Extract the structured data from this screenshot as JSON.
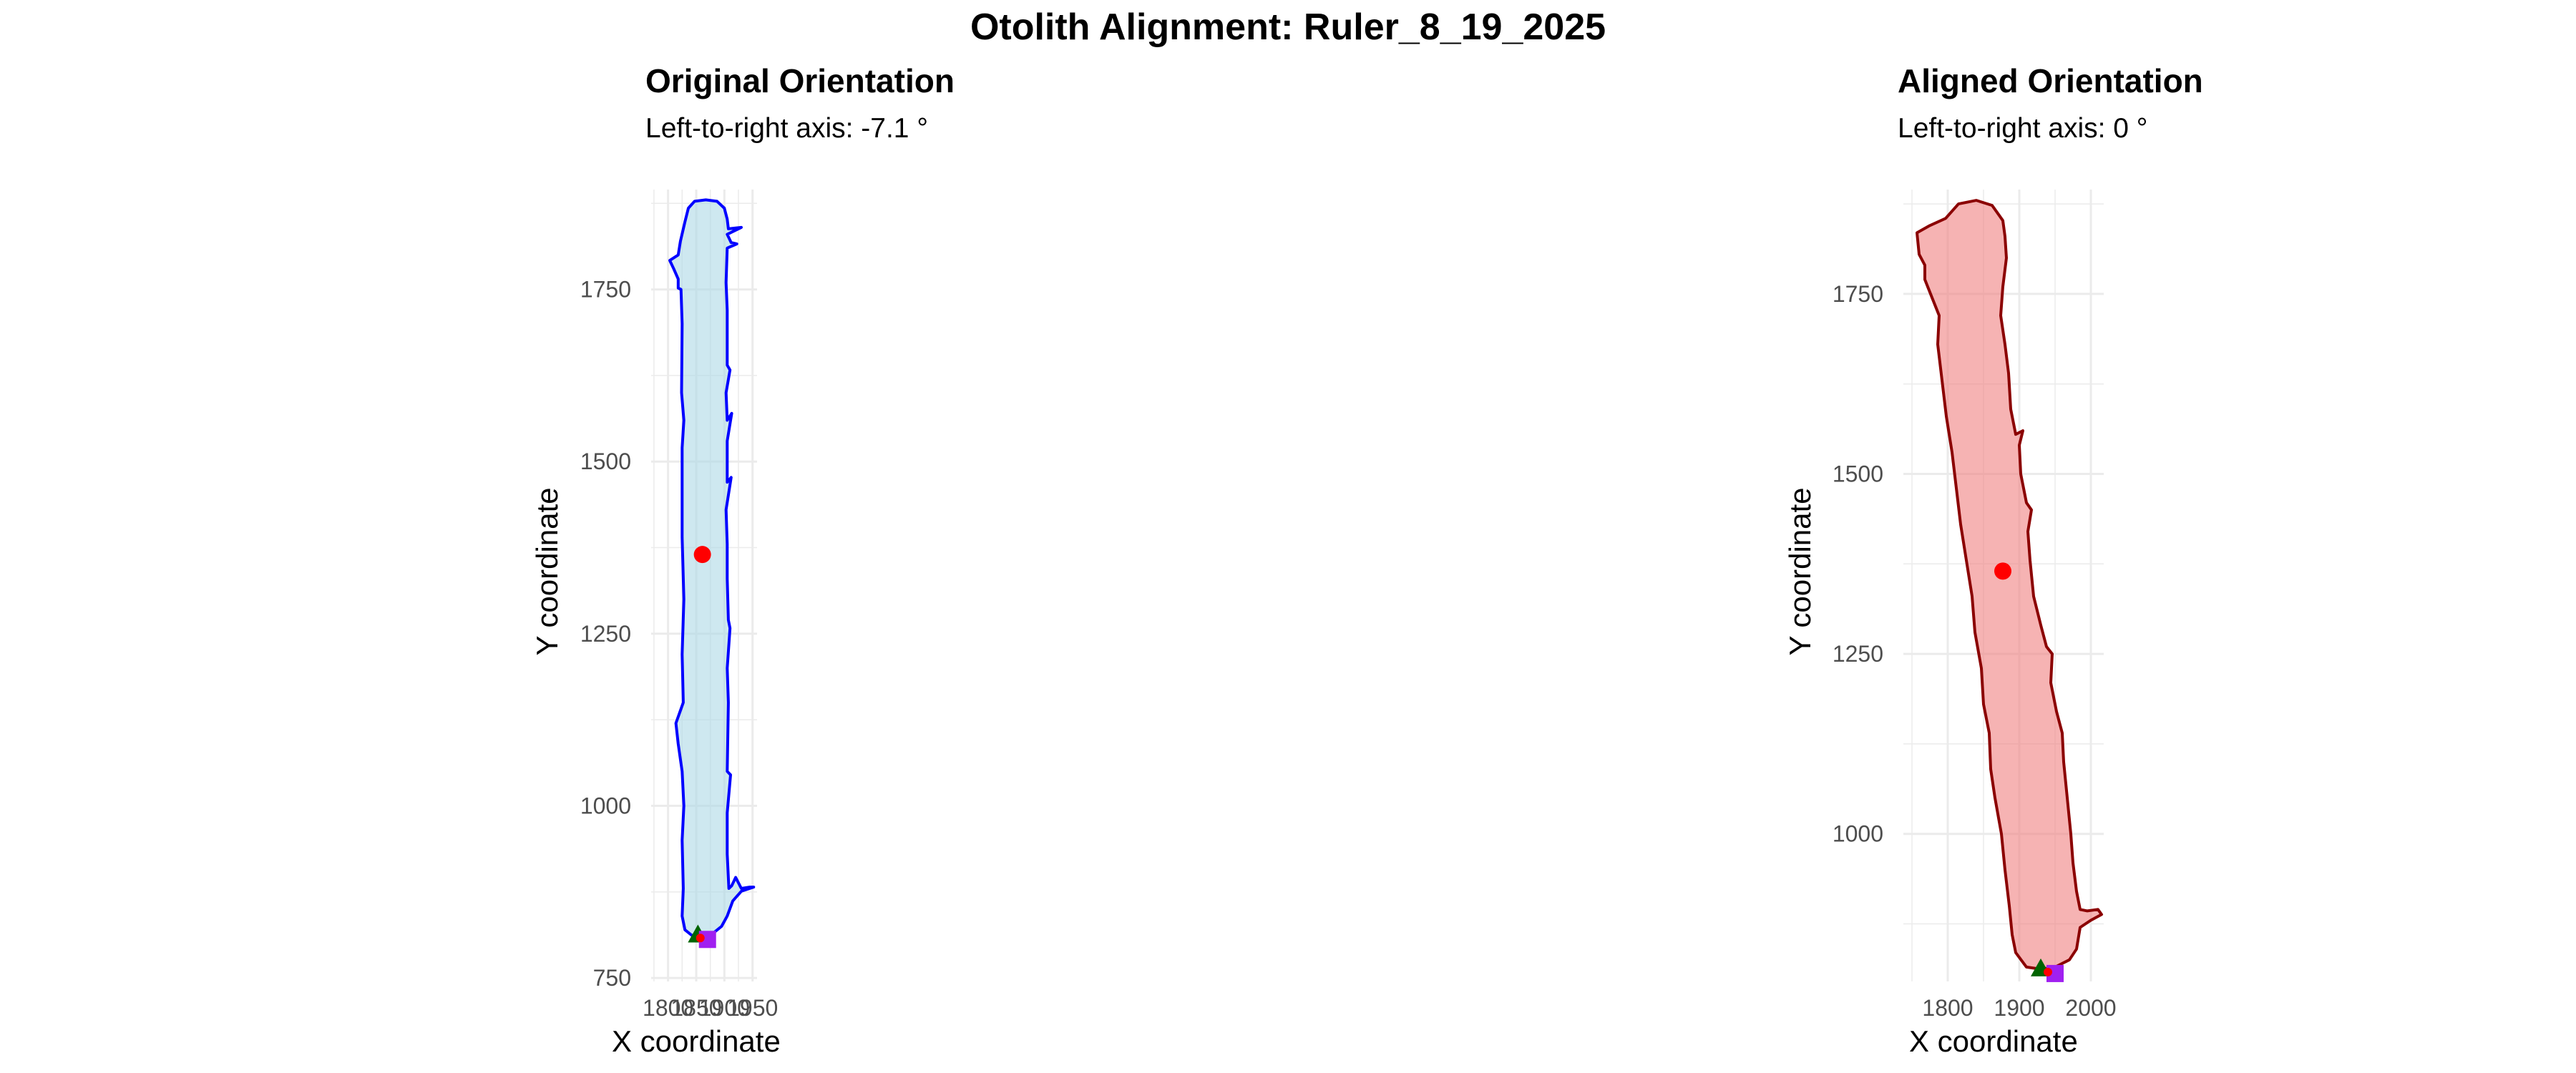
{
  "figure": {
    "title": "Otolith Alignment: Ruler_8_19_2025"
  },
  "chart_data": [
    {
      "type": "scatter",
      "title": "Original Orientation",
      "subtitle": "Left-to-right axis: -7.1 °",
      "xlabel": "X coordinate",
      "ylabel": "Y coordinate",
      "xlim": [
        1770,
        1958
      ],
      "ylim": [
        745,
        1895
      ],
      "x_ticks": [
        1800,
        1850,
        1900,
        1950
      ],
      "x_tick_labels": [
        "1800",
        "1850",
        "1900",
        "1950"
      ],
      "y_ticks": [
        750,
        1000,
        1250,
        1500,
        1750
      ],
      "y_tick_labels": [
        "750",
        "1000",
        "1250",
        "1500",
        "1750"
      ],
      "grid": true,
      "colors": {
        "outline": "#0000ff",
        "fill": "#add8e6",
        "centroid": "#ff0000",
        "triangle": "#006400",
        "square": "#a020f0"
      },
      "outline": [
        [
          1847,
          1878
        ],
        [
          1867,
          1880
        ],
        [
          1887,
          1878
        ],
        [
          1900,
          1868
        ],
        [
          1905,
          1852
        ],
        [
          1907,
          1838
        ],
        [
          1930,
          1840
        ],
        [
          1905,
          1830
        ],
        [
          1912,
          1818
        ],
        [
          1922,
          1816
        ],
        [
          1905,
          1810
        ],
        [
          1903,
          1760
        ],
        [
          1905,
          1720
        ],
        [
          1905,
          1640
        ],
        [
          1910,
          1633
        ],
        [
          1903,
          1600
        ],
        [
          1905,
          1560
        ],
        [
          1913,
          1570
        ],
        [
          1905,
          1530
        ],
        [
          1905,
          1470
        ],
        [
          1912,
          1477
        ],
        [
          1903,
          1430
        ],
        [
          1905,
          1380
        ],
        [
          1905,
          1330
        ],
        [
          1907,
          1270
        ],
        [
          1910,
          1258
        ],
        [
          1905,
          1200
        ],
        [
          1907,
          1150
        ],
        [
          1905,
          1050
        ],
        [
          1911,
          1045
        ],
        [
          1905,
          990
        ],
        [
          1905,
          930
        ],
        [
          1908,
          880
        ],
        [
          1913,
          884
        ],
        [
          1920,
          896
        ],
        [
          1930,
          880
        ],
        [
          1945,
          882
        ],
        [
          1952,
          882
        ],
        [
          1930,
          876
        ],
        [
          1915,
          862
        ],
        [
          1905,
          840
        ],
        [
          1895,
          825
        ],
        [
          1880,
          815
        ],
        [
          1860,
          812
        ],
        [
          1842,
          812
        ],
        [
          1830,
          820
        ],
        [
          1825,
          840
        ],
        [
          1827,
          880
        ],
        [
          1825,
          950
        ],
        [
          1828,
          1000
        ],
        [
          1825,
          1050
        ],
        [
          1818,
          1090
        ],
        [
          1814,
          1120
        ],
        [
          1827,
          1150
        ],
        [
          1825,
          1220
        ],
        [
          1828,
          1300
        ],
        [
          1825,
          1390
        ],
        [
          1825,
          1460
        ],
        [
          1825,
          1520
        ],
        [
          1828,
          1560
        ],
        [
          1824,
          1600
        ],
        [
          1825,
          1700
        ],
        [
          1823,
          1750
        ],
        [
          1818,
          1752
        ],
        [
          1818,
          1765
        ],
        [
          1810,
          1780
        ],
        [
          1803,
          1792
        ],
        [
          1818,
          1800
        ],
        [
          1822,
          1820
        ],
        [
          1830,
          1848
        ],
        [
          1836,
          1868
        ],
        [
          1847,
          1878
        ]
      ],
      "centroid": [
        1861,
        1365
      ],
      "triangle": [
        1853,
        812
      ],
      "square": [
        1870,
        806
      ]
    },
    {
      "type": "scatter",
      "title": "Aligned Orientation",
      "subtitle": "Left-to-right axis: 0 °",
      "xlabel": "X coordinate",
      "ylabel": "Y coordinate",
      "xlim": [
        1738,
        2018
      ],
      "ylim": [
        795,
        1895
      ],
      "x_ticks": [
        1800,
        1900,
        2000
      ],
      "x_tick_labels": [
        "1800",
        "1900",
        "2000"
      ],
      "y_ticks": [
        1000,
        1250,
        1500,
        1750
      ],
      "y_tick_labels": [
        "1000",
        "1250",
        "1500",
        "1750"
      ],
      "grid": true,
      "colors": {
        "outline": "#8b0000",
        "fill": "#f08080",
        "centroid": "#ff0000",
        "triangle": "#006400",
        "square": "#a020f0"
      },
      "outline": [
        [
          1797,
          1855
        ],
        [
          1815,
          1875
        ],
        [
          1840,
          1880
        ],
        [
          1862,
          1873
        ],
        [
          1877,
          1852
        ],
        [
          1880,
          1830
        ],
        [
          1882,
          1800
        ],
        [
          1877,
          1760
        ],
        [
          1874,
          1720
        ],
        [
          1880,
          1680
        ],
        [
          1885,
          1640
        ],
        [
          1888,
          1590
        ],
        [
          1895,
          1555
        ],
        [
          1905,
          1560
        ],
        [
          1900,
          1540
        ],
        [
          1902,
          1500
        ],
        [
          1910,
          1460
        ],
        [
          1917,
          1450
        ],
        [
          1912,
          1420
        ],
        [
          1915,
          1380
        ],
        [
          1920,
          1330
        ],
        [
          1930,
          1290
        ],
        [
          1938,
          1260
        ],
        [
          1946,
          1250
        ],
        [
          1944,
          1210
        ],
        [
          1952,
          1170
        ],
        [
          1960,
          1140
        ],
        [
          1962,
          1100
        ],
        [
          1967,
          1050
        ],
        [
          1972,
          1000
        ],
        [
          1975,
          960
        ],
        [
          1980,
          920
        ],
        [
          1985,
          895
        ],
        [
          1995,
          893
        ],
        [
          2010,
          895
        ],
        [
          2015,
          888
        ],
        [
          2000,
          880
        ],
        [
          1985,
          870
        ],
        [
          1980,
          840
        ],
        [
          1970,
          825
        ],
        [
          1950,
          815
        ],
        [
          1930,
          812
        ],
        [
          1910,
          815
        ],
        [
          1895,
          835
        ],
        [
          1890,
          860
        ],
        [
          1886,
          900
        ],
        [
          1880,
          950
        ],
        [
          1875,
          1000
        ],
        [
          1866,
          1050
        ],
        [
          1860,
          1090
        ],
        [
          1858,
          1140
        ],
        [
          1850,
          1180
        ],
        [
          1847,
          1230
        ],
        [
          1838,
          1280
        ],
        [
          1834,
          1330
        ],
        [
          1826,
          1380
        ],
        [
          1818,
          1430
        ],
        [
          1812,
          1480
        ],
        [
          1806,
          1530
        ],
        [
          1798,
          1580
        ],
        [
          1792,
          1630
        ],
        [
          1786,
          1680
        ],
        [
          1788,
          1720
        ],
        [
          1780,
          1740
        ],
        [
          1774,
          1755
        ],
        [
          1768,
          1770
        ],
        [
          1768,
          1790
        ],
        [
          1760,
          1805
        ],
        [
          1757,
          1835
        ],
        [
          1775,
          1845
        ],
        [
          1797,
          1855
        ]
      ],
      "centroid": [
        1877,
        1365
      ],
      "triangle": [
        1930,
        812
      ],
      "square": [
        1950,
        806
      ]
    }
  ]
}
